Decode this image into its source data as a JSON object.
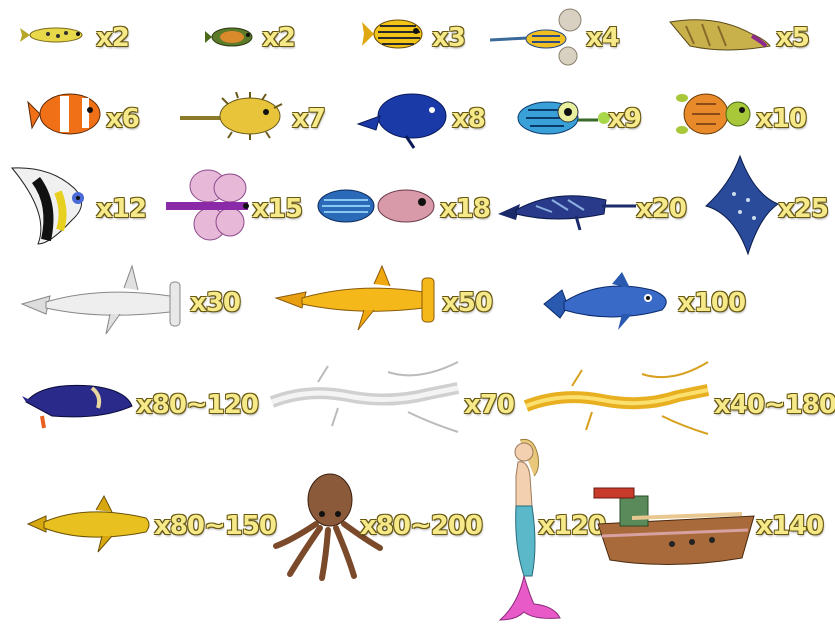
{
  "paytable": {
    "items": [
      {
        "name": "small-yellow-fish",
        "multiplier": "x2"
      },
      {
        "name": "turtle-fish",
        "multiplier": "x2"
      },
      {
        "name": "striped-yellow-fish",
        "multiplier": "x3"
      },
      {
        "name": "seahorse-ray",
        "multiplier": "x4"
      },
      {
        "name": "angler-fish",
        "multiplier": "x5"
      },
      {
        "name": "clown-fish",
        "multiplier": "x6"
      },
      {
        "name": "puffer-fish",
        "multiplier": "x7"
      },
      {
        "name": "blue-tang",
        "multiplier": "x8"
      },
      {
        "name": "lantern-fish",
        "multiplier": "x9"
      },
      {
        "name": "sea-turtle",
        "multiplier": "x10"
      },
      {
        "name": "moorish-idol",
        "multiplier": "x12"
      },
      {
        "name": "butterfly-fish",
        "multiplier": "x15"
      },
      {
        "name": "blue-puffer",
        "multiplier": "x18"
      },
      {
        "name": "swordfish",
        "multiplier": "x20"
      },
      {
        "name": "manta-ray",
        "multiplier": "x25"
      },
      {
        "name": "silver-shark",
        "multiplier": "x30"
      },
      {
        "name": "gold-shark",
        "multiplier": "x50"
      },
      {
        "name": "dolphin",
        "multiplier": "x100"
      },
      {
        "name": "killer-whale",
        "multiplier": "x80~120"
      },
      {
        "name": "silver-dragon",
        "multiplier": "x70"
      },
      {
        "name": "gold-dragon",
        "multiplier": "x40~180"
      },
      {
        "name": "golden-whale",
        "multiplier": "x80~150"
      },
      {
        "name": "octopus",
        "multiplier": "x80~200"
      },
      {
        "name": "mermaid",
        "multiplier": "x120"
      },
      {
        "name": "pirate-ship",
        "multiplier": "x140"
      }
    ]
  },
  "colors": {
    "multiplier_text": "#f6e98a",
    "multiplier_outline": "#6b5a12"
  }
}
